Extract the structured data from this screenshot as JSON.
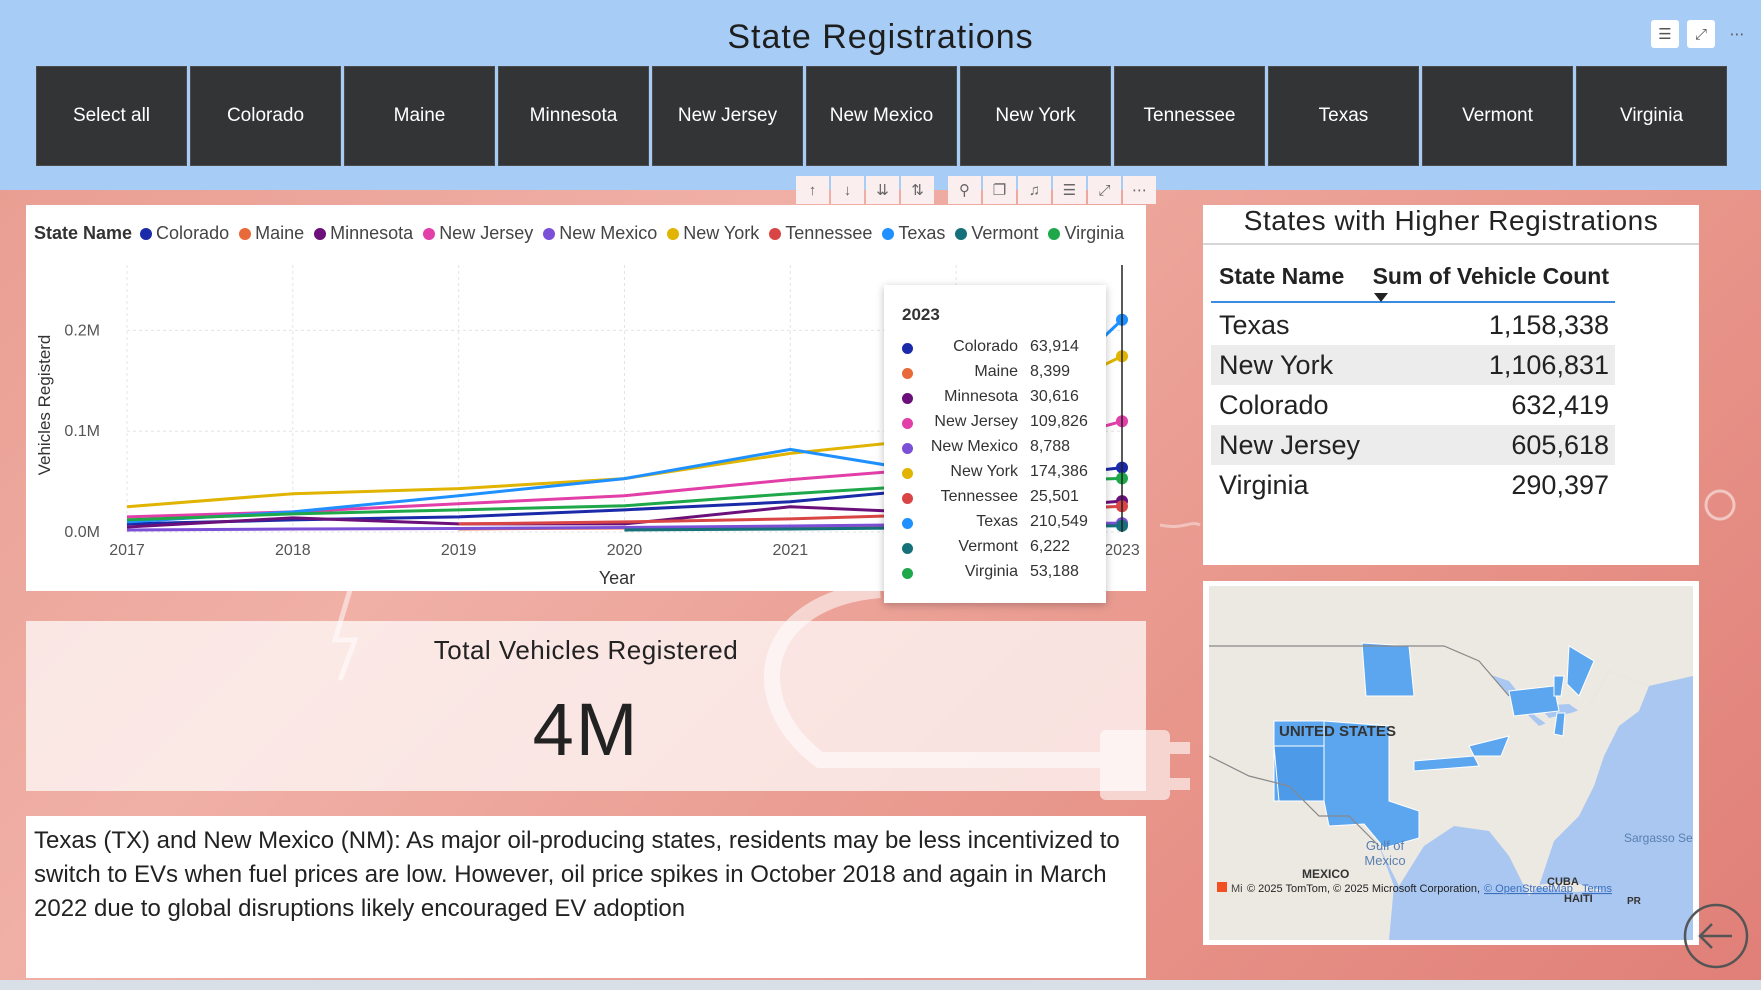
{
  "header": {
    "title": "State Registrations",
    "icons": [
      "filter-icon",
      "focus-mode-icon",
      "more-options-icon"
    ]
  },
  "slicer": {
    "items": [
      "Select all",
      "Colorado",
      "Maine",
      "Minnesota",
      "New Jersey",
      "New Mexico",
      "New York",
      "Tennessee",
      "Texas",
      "Vermont",
      "Virginia"
    ]
  },
  "chart_toolbar": [
    "drill-up-icon",
    "drill-down-icon",
    "expand-next-level-icon",
    "expand-hierarchy-icon",
    "pin-icon",
    "copy-icon",
    "alert-icon",
    "filter-icon",
    "focus-mode-icon",
    "more-options-icon"
  ],
  "line_chart": {
    "legend_title": "State Name",
    "series_names": [
      "Colorado",
      "Maine",
      "Minnesota",
      "New Jersey",
      "New Mexico",
      "New York",
      "Tennessee",
      "Texas",
      "Vermont",
      "Virginia"
    ],
    "colors": [
      "#1a2aa8",
      "#e8693a",
      "#6b0f7a",
      "#e23fa8",
      "#7b4fd6",
      "#e0b400",
      "#d94545",
      "#1e90ff",
      "#16707a",
      "#1fa84a"
    ]
  },
  "chart_data": {
    "type": "line",
    "x": [
      2017,
      2018,
      2019,
      2020,
      2021,
      2022,
      2023
    ],
    "xlabel": "Year",
    "ylabel": "Vehicles Registerd",
    "yticks": [
      "0.0M",
      "0.1M",
      "0.2M"
    ],
    "ylim": [
      0,
      250000
    ],
    "xticks": [
      "2017",
      "2018",
      "2019",
      "2020",
      "2021",
      "",
      "2023"
    ],
    "grid": true,
    "legend": "top",
    "series": [
      {
        "name": "Colorado",
        "values": [
          8000,
          12000,
          15000,
          22000,
          30000,
          45000,
          63914
        ]
      },
      {
        "name": "Maine",
        "values": [
          null,
          null,
          3000,
          4000,
          5000,
          6500,
          8399
        ]
      },
      {
        "name": "Minnesota",
        "values": [
          5000,
          14000,
          8000,
          8000,
          25000,
          18000,
          30616
        ]
      },
      {
        "name": "New Jersey",
        "values": [
          15000,
          20000,
          28000,
          36000,
          52000,
          65000,
          109826
        ]
      },
      {
        "name": "New Mexico",
        "values": [
          2000,
          3000,
          3500,
          4500,
          6000,
          7500,
          8788
        ]
      },
      {
        "name": "New York",
        "values": [
          25000,
          38000,
          43000,
          53000,
          78000,
          95000,
          174386
        ]
      },
      {
        "name": "Tennessee",
        "values": [
          null,
          null,
          8000,
          10000,
          13000,
          18000,
          25501
        ]
      },
      {
        "name": "Texas",
        "values": [
          10000,
          20000,
          36000,
          53000,
          82000,
          55000,
          210549
        ]
      },
      {
        "name": "Vermont",
        "values": [
          null,
          null,
          null,
          2000,
          3000,
          4500,
          6222
        ]
      },
      {
        "name": "Virginia",
        "values": [
          12000,
          18000,
          22000,
          26000,
          38000,
          48000,
          53188
        ]
      }
    ]
  },
  "tooltip": {
    "title": "2023",
    "rows": [
      {
        "name": "Colorado",
        "value": "63,914"
      },
      {
        "name": "Maine",
        "value": "8,399"
      },
      {
        "name": "Minnesota",
        "value": "30,616"
      },
      {
        "name": "New Jersey",
        "value": "109,826"
      },
      {
        "name": "New Mexico",
        "value": "8,788"
      },
      {
        "name": "New York",
        "value": "174,386"
      },
      {
        "name": "Tennessee",
        "value": "25,501"
      },
      {
        "name": "Texas",
        "value": "210,549"
      },
      {
        "name": "Vermont",
        "value": "6,222"
      },
      {
        "name": "Virginia",
        "value": "53,188"
      }
    ]
  },
  "total_card": {
    "title": "Total Vehicles Registered",
    "value": "4M"
  },
  "text_box": {
    "body": "Texas (TX) and New Mexico (NM): As major oil-producing states, residents may be less incentivized to switch to EVs when fuel prices are low. However, oil price spikes in October 2018 and again in March 2022 due to global disruptions likely encouraged EV adoption"
  },
  "table": {
    "title": "States with Higher Registrations",
    "col_name": "State Name",
    "col_sum": "Sum of Vehicle Count",
    "rows": [
      {
        "name": "Texas",
        "value": "1,158,338"
      },
      {
        "name": "New York",
        "value": "1,106,831"
      },
      {
        "name": "Colorado",
        "value": "632,419"
      },
      {
        "name": "New Jersey",
        "value": "605,618"
      },
      {
        "name": "Virginia",
        "value": "290,397"
      }
    ]
  },
  "map": {
    "country_label": "UNITED STATES",
    "gulf_label_1": "Gulf of",
    "gulf_label_2": "Mexico",
    "mexico_label": "MEXICO",
    "cuba_label": "CUBA",
    "haiti_label": "HAITI",
    "pr_label": "PR",
    "sargasso_label": "Sargasso Se",
    "attribution": "© 2025 TomTom, © 2025 Microsoft Corporation,",
    "osm_link": "© OpenStreetMap",
    "terms_link": "Terms",
    "ms_prefix": "Mi",
    "highlight_color": "#5ba6ee"
  }
}
